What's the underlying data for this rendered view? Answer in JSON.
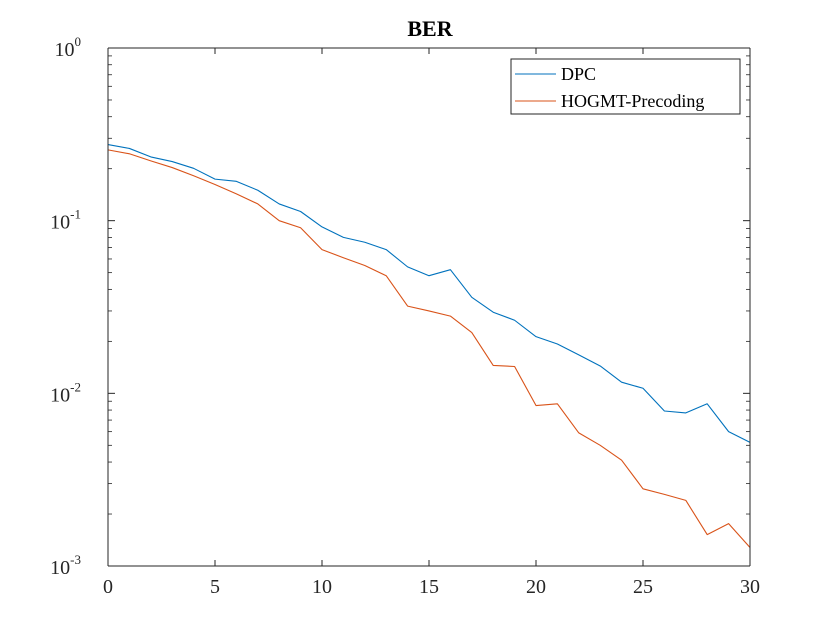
{
  "chart_data": {
    "type": "line",
    "title": "BER",
    "xlabel": "",
    "ylabel": "",
    "xlim": [
      0,
      30
    ],
    "ylim": [
      0.001,
      1
    ],
    "yscale": "log",
    "grid": false,
    "legend_position": "top-right",
    "x_ticks": [
      {
        "value": 0,
        "label": "0"
      },
      {
        "value": 5,
        "label": "5"
      },
      {
        "value": 10,
        "label": "10"
      },
      {
        "value": 15,
        "label": "15"
      },
      {
        "value": 20,
        "label": "20"
      },
      {
        "value": 25,
        "label": "25"
      },
      {
        "value": 30,
        "label": "30"
      }
    ],
    "y_ticks": [
      {
        "value": 1,
        "base": "10",
        "exp": "0"
      },
      {
        "value": 0.1,
        "base": "10",
        "exp": "-1"
      },
      {
        "value": 0.01,
        "base": "10",
        "exp": "-2"
      },
      {
        "value": 0.001,
        "base": "10",
        "exp": "-3"
      }
    ],
    "x": [
      0,
      1,
      2,
      3,
      4,
      5,
      6,
      7,
      8,
      9,
      10,
      11,
      12,
      13,
      14,
      15,
      16,
      17,
      18,
      19,
      20,
      21,
      22,
      23,
      24,
      25,
      26,
      27,
      28,
      29,
      30
    ],
    "series": [
      {
        "name": "DPC",
        "color": "#0072BD",
        "values": [
          0.276,
          0.262,
          0.234,
          0.22,
          0.201,
          0.174,
          0.169,
          0.15,
          0.125,
          0.113,
          0.092,
          0.08,
          0.075,
          0.068,
          0.054,
          0.048,
          0.052,
          0.036,
          0.0295,
          0.0265,
          0.0213,
          0.0193,
          0.0167,
          0.0144,
          0.0116,
          0.0107,
          0.0079,
          0.0077,
          0.0087,
          0.006,
          0.0052
        ]
      },
      {
        "name": "HOGMT-Precoding",
        "color": "#D95319",
        "values": [
          0.257,
          0.244,
          0.222,
          0.203,
          0.182,
          0.162,
          0.143,
          0.125,
          0.1,
          0.091,
          0.068,
          0.061,
          0.055,
          0.048,
          0.032,
          0.03,
          0.028,
          0.0225,
          0.0145,
          0.0143,
          0.0085,
          0.0087,
          0.0059,
          0.005,
          0.0041,
          0.0028,
          0.0026,
          0.0024,
          0.00152,
          0.00176,
          0.00128
        ]
      }
    ]
  }
}
